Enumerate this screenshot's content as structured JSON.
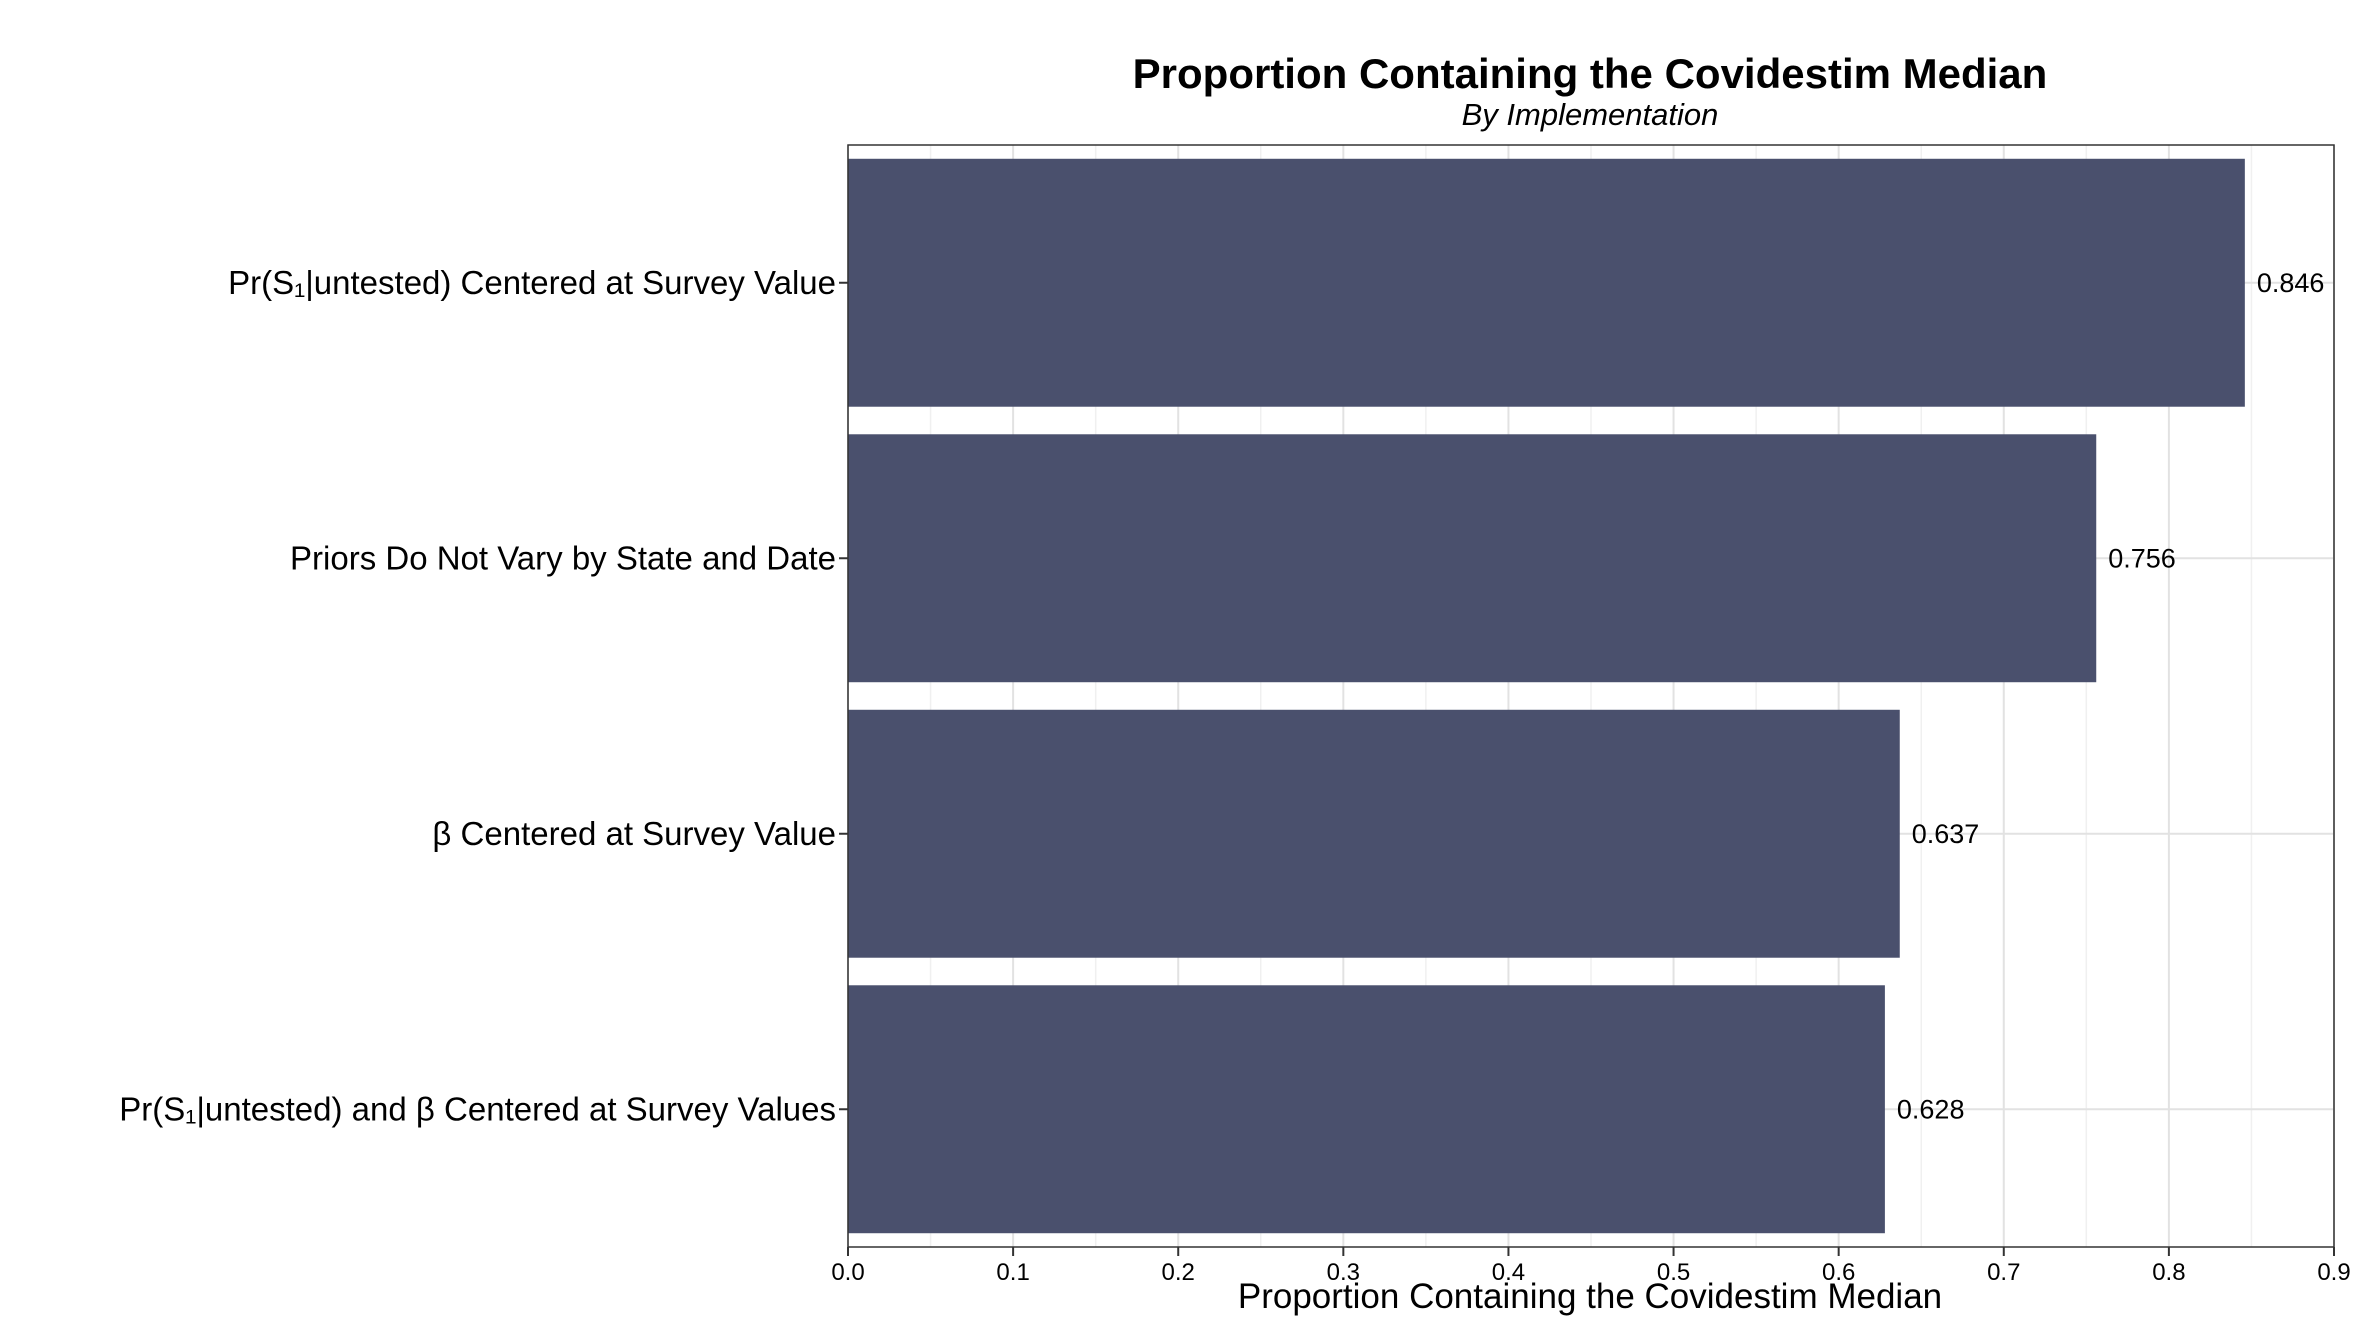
{
  "chart_data": {
    "type": "bar",
    "orientation": "horizontal",
    "title": "Proportion Containing the Covidestim Median",
    "subtitle": "By Implementation",
    "xlabel": "Proportion Containing the Covidestim Median",
    "ylabel": "",
    "xlim": [
      0,
      0.9
    ],
    "xticks": [
      "0.0",
      "0.1",
      "0.2",
      "0.3",
      "0.4",
      "0.5",
      "0.6",
      "0.7",
      "0.8",
      "0.9"
    ],
    "categories": [
      "Pr(S₁|untested) Centered at Survey Value",
      "Priors Do Not Vary by State and Date",
      "β Centered at Survey Value",
      "Pr(S₁|untested) and β Centered at Survey Values"
    ],
    "values": [
      0.846,
      0.756,
      0.637,
      0.628
    ],
    "value_labels": [
      "0.846",
      "0.756",
      "0.637",
      "0.628"
    ],
    "bar_color": "#4a506d",
    "grid": true,
    "legend": "none"
  }
}
